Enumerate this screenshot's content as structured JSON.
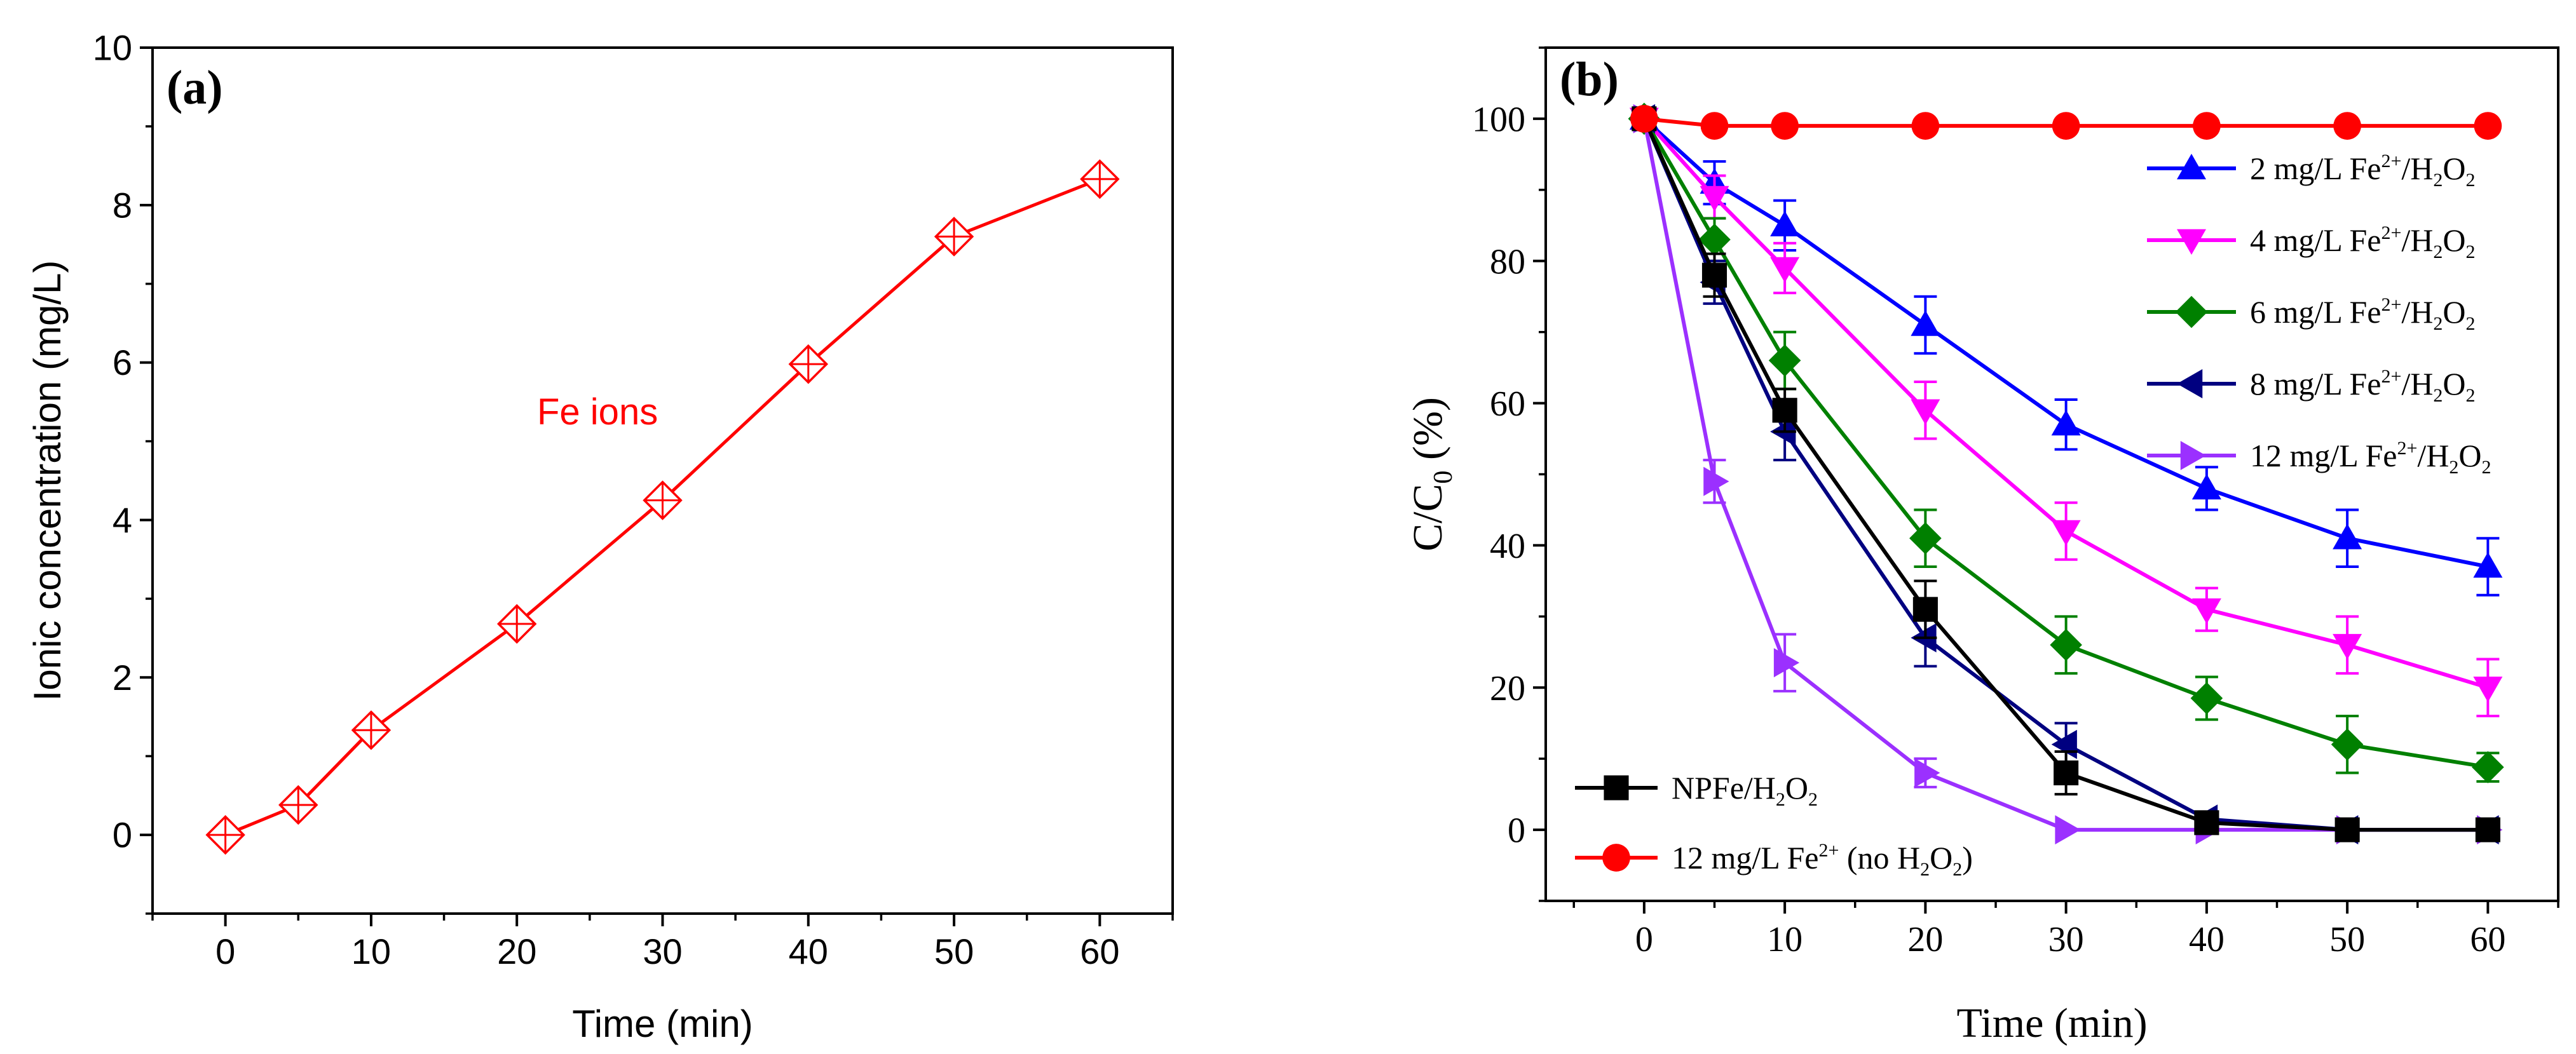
{
  "chart_data": [
    {
      "id": "a",
      "type": "line",
      "panel_label": "(a)",
      "title": "",
      "xlabel": "Time (min)",
      "ylabel": "Ionic concentration (mg/L)",
      "xlim": [
        -5,
        65
      ],
      "ylim": [
        -1,
        10
      ],
      "xticks": [
        0,
        10,
        20,
        30,
        40,
        50,
        60
      ],
      "yticks": [
        0,
        2,
        4,
        6,
        8,
        10
      ],
      "grid": false,
      "annotation": "Fe ions",
      "series": [
        {
          "name": "Fe ions",
          "color": "#ff0000",
          "marker": "diamond-cross",
          "x": [
            0,
            5,
            10,
            20,
            30,
            40,
            50,
            60
          ],
          "values": [
            0,
            0.38,
            1.33,
            2.68,
            4.25,
            5.98,
            7.6,
            8.33
          ]
        }
      ]
    },
    {
      "id": "b",
      "type": "line",
      "panel_label": "(b)",
      "title": "",
      "xlabel": "Time (min)",
      "ylabel": "C/C0 (%)",
      "ylabel_parts": {
        "main": "C/C",
        "sub": "0",
        "unit": " (%)"
      },
      "xlim": [
        -7,
        65
      ],
      "ylim": [
        -10,
        110
      ],
      "xticks": [
        0,
        10,
        20,
        30,
        40,
        50,
        60
      ],
      "yticks": [
        0,
        20,
        40,
        60,
        80,
        100
      ],
      "grid": false,
      "legend_top": "top-right",
      "legend_bottom": "bottom-left",
      "series": [
        {
          "name": "2 mg/L Fe2+/H2O2",
          "label_parts": [
            [
              "2 mg/L Fe",
              ""
            ],
            [
              "2+",
              "sup"
            ],
            [
              "/H",
              ""
            ],
            [
              "2",
              "sub"
            ],
            [
              "O",
              ""
            ],
            [
              "2",
              "sub"
            ]
          ],
          "color": "#0000ff",
          "marker": "triangle-up",
          "legend": "top",
          "x": [
            0,
            5,
            10,
            20,
            30,
            40,
            50,
            60
          ],
          "values": [
            100,
            91,
            85,
            71,
            57,
            48,
            41,
            37
          ],
          "errors": [
            0,
            3,
            3.5,
            4,
            3.5,
            3,
            4,
            4
          ]
        },
        {
          "name": "4 mg/L Fe2+/H2O2",
          "label_parts": [
            [
              "4 mg/L Fe",
              ""
            ],
            [
              "2+",
              "sup"
            ],
            [
              "/H",
              ""
            ],
            [
              "2",
              "sub"
            ],
            [
              "O",
              ""
            ],
            [
              "2",
              "sub"
            ]
          ],
          "color": "#ff00ff",
          "marker": "triangle-down",
          "legend": "top",
          "x": [
            0,
            5,
            10,
            20,
            30,
            40,
            50,
            60
          ],
          "values": [
            100,
            89,
            79,
            59,
            42,
            31,
            26,
            20
          ],
          "errors": [
            0,
            3,
            3.5,
            4,
            4,
            3,
            4,
            4
          ]
        },
        {
          "name": "6 mg/L Fe2+/H2O2",
          "label_parts": [
            [
              "6 mg/L Fe",
              ""
            ],
            [
              "2+",
              "sup"
            ],
            [
              "/H",
              ""
            ],
            [
              "2",
              "sub"
            ],
            [
              "O",
              ""
            ],
            [
              "2",
              "sub"
            ]
          ],
          "color": "#008000",
          "marker": "diamond",
          "legend": "top",
          "x": [
            0,
            5,
            10,
            20,
            30,
            40,
            50,
            60
          ],
          "values": [
            100,
            83,
            66,
            41,
            26,
            18.5,
            12,
            8.8
          ],
          "errors": [
            0,
            3,
            4,
            4,
            4,
            3,
            4,
            2
          ]
        },
        {
          "name": "8 mg/L Fe2+/H2O2",
          "label_parts": [
            [
              "8 mg/L Fe",
              ""
            ],
            [
              "2+",
              "sup"
            ],
            [
              "/H",
              ""
            ],
            [
              "2",
              "sub"
            ],
            [
              "O",
              ""
            ],
            [
              "2",
              "sub"
            ]
          ],
          "color": "#000080",
          "marker": "triangle-left",
          "legend": "top",
          "x": [
            0,
            5,
            10,
            20,
            30,
            40,
            50,
            60
          ],
          "values": [
            100,
            77,
            56,
            27,
            12,
            1.5,
            0,
            0
          ],
          "errors": [
            0,
            3,
            4,
            4,
            3,
            1,
            0,
            0
          ]
        },
        {
          "name": "12 mg/L Fe2+/H2O2",
          "label_parts": [
            [
              "12 mg/L Fe",
              ""
            ],
            [
              "2+",
              "sup"
            ],
            [
              "/H",
              ""
            ],
            [
              "2",
              "sub"
            ],
            [
              "O",
              ""
            ],
            [
              "2",
              "sub"
            ]
          ],
          "color": "#9b30ff",
          "marker": "triangle-right",
          "legend": "top",
          "x": [
            0,
            5,
            10,
            20,
            30,
            40,
            50,
            60
          ],
          "values": [
            100,
            49,
            23.5,
            8,
            0,
            0,
            0,
            0
          ],
          "errors": [
            0,
            3,
            4,
            2,
            0,
            0,
            0,
            0
          ]
        },
        {
          "name": "NPFe/H2O2",
          "label_parts": [
            [
              "NPFe/H",
              ""
            ],
            [
              "2",
              "sub"
            ],
            [
              "O",
              ""
            ],
            [
              "2",
              "sub"
            ]
          ],
          "color": "#000000",
          "marker": "square",
          "legend": "bottom",
          "x": [
            0,
            5,
            10,
            20,
            30,
            40,
            50,
            60
          ],
          "values": [
            100,
            78,
            59,
            31,
            8,
            1,
            0,
            0
          ],
          "errors": [
            0,
            3,
            3,
            4,
            3,
            1,
            0,
            0
          ]
        },
        {
          "name": "12 mg/L Fe2+ (no H2O2)",
          "label_parts": [
            [
              "12 mg/L Fe",
              ""
            ],
            [
              "2+",
              "sup"
            ],
            [
              " (no H",
              ""
            ],
            [
              "2",
              "sub"
            ],
            [
              "O",
              ""
            ],
            [
              "2",
              "sub"
            ],
            [
              ")",
              ""
            ]
          ],
          "color": "#ff0000",
          "marker": "circle",
          "legend": "bottom",
          "x": [
            0,
            5,
            10,
            20,
            30,
            40,
            50,
            60
          ],
          "values": [
            100,
            99,
            99,
            99,
            99,
            99,
            99,
            99
          ],
          "errors": [
            0,
            0,
            0,
            0,
            0,
            0,
            0,
            0
          ]
        }
      ]
    }
  ]
}
